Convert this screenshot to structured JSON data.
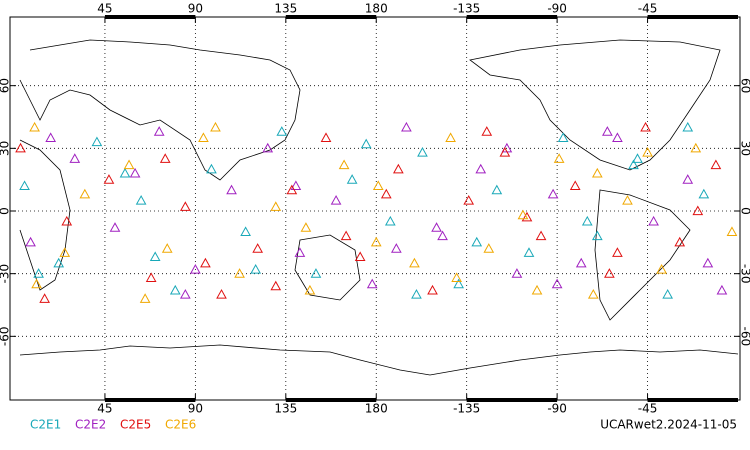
{
  "chart_data": {
    "type": "scatter",
    "xlim": [
      0,
      360
    ],
    "ylim": [
      -90,
      90
    ],
    "xticks": [
      45,
      90,
      135,
      180,
      {
        "value": 225,
        "label": "-135"
      },
      {
        "value": 270,
        "label": "-90"
      },
      {
        "value": 315,
        "label": "-45"
      }
    ],
    "yticks": [
      60,
      30,
      0,
      -30,
      -60
    ],
    "grid": true,
    "footer": "UCARwet2.2024-11-05",
    "series": [
      {
        "name": "C2E1",
        "color": "#18a8b8",
        "x": [
          5,
          22,
          41,
          63,
          80,
          98,
          115,
          133,
          150,
          168,
          187,
          203,
          221,
          240,
          256,
          273,
          290,
          308,
          325,
          343,
          12,
          55,
          120,
          175,
          230,
          285,
          335,
          70,
          200,
          310
        ],
        "values": [
          12,
          -25,
          33,
          5,
          -38,
          20,
          -10,
          38,
          -30,
          15,
          -5,
          28,
          -35,
          10,
          -20,
          35,
          -12,
          22,
          -40,
          8,
          -30,
          18,
          -28,
          32,
          -15,
          -5,
          40,
          -22,
          -40,
          25
        ]
      },
      {
        "name": "C2E2",
        "color": "#a020c0",
        "x": [
          8,
          30,
          50,
          72,
          90,
          108,
          126,
          142,
          160,
          178,
          195,
          213,
          232,
          250,
          268,
          282,
          300,
          318,
          335,
          352,
          18,
          85,
          140,
          190,
          245,
          295,
          345,
          60,
          210,
          270
        ],
        "values": [
          -15,
          25,
          -8,
          38,
          -28,
          10,
          30,
          -20,
          5,
          -35,
          40,
          -12,
          20,
          -30,
          8,
          -25,
          35,
          -5,
          15,
          -38,
          35,
          -40,
          12,
          -18,
          30,
          38,
          -25,
          18,
          -8,
          -35
        ]
      },
      {
        "name": "C2E5",
        "color": "#e01010",
        "x": [
          3,
          26,
          47,
          68,
          85,
          103,
          121,
          138,
          155,
          172,
          191,
          208,
          226,
          244,
          262,
          279,
          296,
          314,
          331,
          349,
          15,
          95,
          130,
          185,
          235,
          300,
          340,
          75,
          165,
          255
        ],
        "values": [
          30,
          -5,
          15,
          -32,
          2,
          -40,
          -18,
          10,
          35,
          -22,
          20,
          -38,
          5,
          28,
          -12,
          12,
          -30,
          40,
          -15,
          22,
          -42,
          -25,
          -36,
          8,
          38,
          -20,
          0,
          25,
          -12,
          -3
        ]
      },
      {
        "name": "C2E6",
        "color": "#f0a800",
        "x": [
          11,
          35,
          57,
          76,
          94,
          112,
          130,
          147,
          164,
          181,
          199,
          217,
          236,
          253,
          271,
          288,
          305,
          322,
          339,
          357,
          25,
          100,
          145,
          220,
          260,
          315,
          10,
          65,
          180,
          290
        ],
        "values": [
          -35,
          8,
          22,
          -18,
          35,
          -30,
          2,
          -38,
          22,
          12,
          -25,
          35,
          -18,
          -2,
          25,
          -40,
          5,
          -28,
          30,
          -10,
          -20,
          40,
          -8,
          -32,
          -38,
          28,
          40,
          -42,
          -15,
          18
        ]
      }
    ]
  }
}
